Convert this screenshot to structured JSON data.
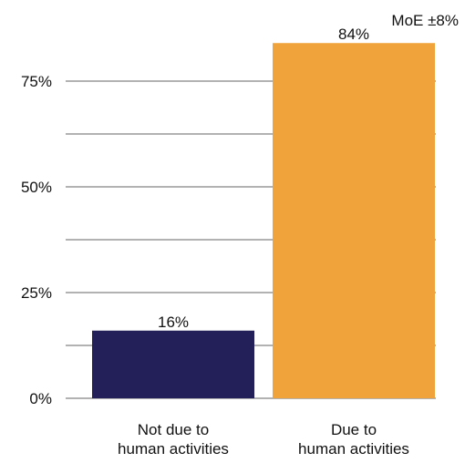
{
  "chart_data": {
    "type": "bar",
    "categories": [
      [
        "Not due to",
        "human activities"
      ],
      [
        "Due to",
        "human activities"
      ]
    ],
    "values": [
      16,
      84
    ],
    "data_labels": [
      "16%",
      "84%"
    ],
    "colors": [
      "#231f58",
      "#f0a33a"
    ],
    "y_ticks": [
      0,
      25,
      50,
      75
    ],
    "y_tick_labels": [
      "0%",
      "25%",
      "50%",
      "75%"
    ],
    "ylim": [
      0,
      90
    ],
    "grid": true,
    "annotation": "MoE ±8%"
  }
}
